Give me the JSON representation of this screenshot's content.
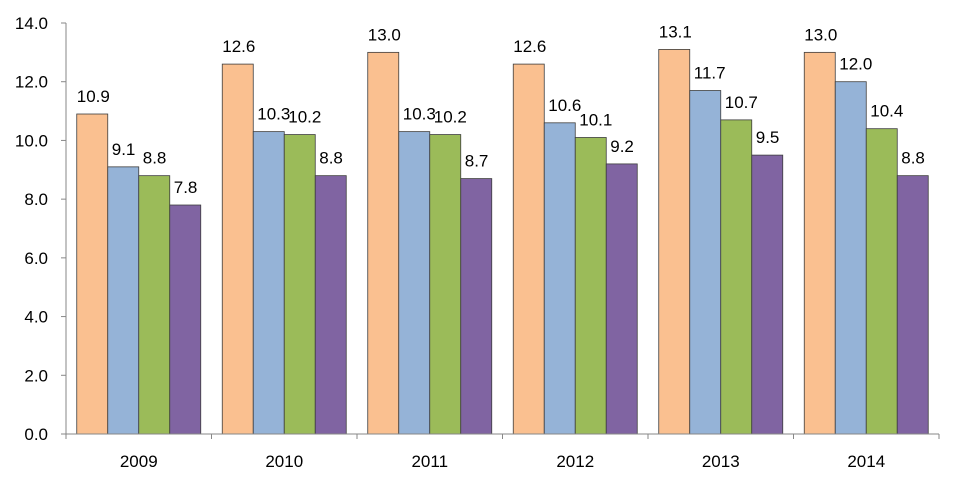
{
  "chart_data": {
    "type": "bar",
    "title": "",
    "xlabel": "",
    "ylabel": "",
    "categories": [
      "2009",
      "2010",
      "2011",
      "2012",
      "2013",
      "2014"
    ],
    "ylim": [
      0,
      14
    ],
    "yticks": [
      "0.0",
      "2.0",
      "4.0",
      "6.0",
      "8.0",
      "10.0",
      "12.0",
      "14.0"
    ],
    "grid": false,
    "legend": "none",
    "series": [
      {
        "values": [
          10.9,
          12.6,
          13.0,
          12.6,
          13.1,
          13.0
        ],
        "labels": [
          "10.9",
          "12.6",
          "13.0",
          "12.6",
          "13.1",
          "13.0"
        ],
        "color": "#FAC090"
      },
      {
        "values": [
          9.1,
          10.3,
          10.3,
          10.6,
          11.7,
          12.0
        ],
        "labels": [
          "9.1",
          "10.3",
          "10.3",
          "10.6",
          "11.7",
          "12.0"
        ],
        "color": "#95B3D7"
      },
      {
        "values": [
          8.8,
          10.2,
          10.2,
          10.1,
          10.7,
          10.4
        ],
        "labels": [
          "8.8",
          "10.2",
          "10.2",
          "10.1",
          "10.7",
          "10.4"
        ],
        "color": "#9BBB59"
      },
      {
        "values": [
          7.8,
          8.8,
          8.7,
          9.2,
          9.5,
          8.8
        ],
        "labels": [
          "7.8",
          "8.8",
          "8.7",
          "9.2",
          "9.5",
          "8.8"
        ],
        "color": "#8064A2"
      }
    ]
  }
}
